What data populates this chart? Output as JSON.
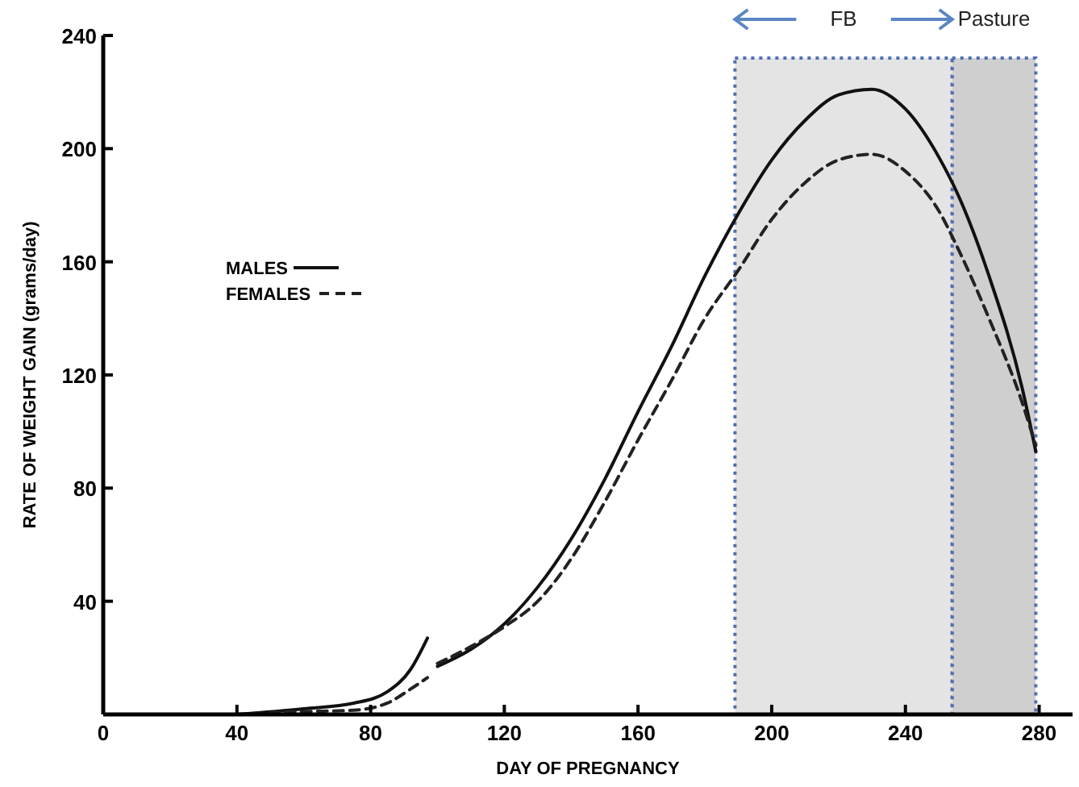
{
  "chart_data": {
    "type": "line",
    "xlabel": "DAY OF PREGNANCY",
    "ylabel": "RATE OF WEIGHT GAIN (grams/day)",
    "xlim": [
      0,
      290
    ],
    "ylim": [
      0,
      240
    ],
    "xticks": [
      0,
      40,
      80,
      120,
      160,
      200,
      240,
      280
    ],
    "yticks": [
      40,
      80,
      120,
      160,
      200,
      240
    ],
    "grid": false,
    "legend": "top left",
    "x": [
      40,
      60,
      75,
      85,
      92,
      97,
      98,
      100,
      110,
      120,
      130,
      140,
      150,
      160,
      170,
      180,
      190,
      200,
      210,
      220,
      230,
      240,
      250,
      256,
      265,
      275,
      279
    ],
    "series": [
      {
        "name": "MALES",
        "color": "#111111",
        "line_style": "solid",
        "values": [
          0,
          2,
          4,
          8,
          16,
          27,
          null,
          17,
          23,
          32,
          45,
          62,
          83,
          107,
          130,
          155,
          177,
          196,
          210,
          219,
          221,
          214,
          197,
          183,
          155,
          115,
          93
        ]
      },
      {
        "name": "FEMALES",
        "color": "#222222",
        "line_style": "dashed",
        "values": [
          0,
          1,
          1.5,
          4,
          9,
          13,
          null,
          18,
          24,
          31,
          40,
          55,
          75,
          97,
          118,
          140,
          157,
          175,
          188,
          196,
          198,
          192,
          178,
          164,
          140,
          110,
          95
        ]
      }
    ],
    "bands": [
      {
        "axis": "x",
        "from": 189,
        "to": 254,
        "label": "FB",
        "color": "#e4e4e4"
      },
      {
        "axis": "x",
        "from": 254,
        "to": 279,
        "label": "Pasture",
        "color": "#cfcfcf"
      }
    ]
  }
}
